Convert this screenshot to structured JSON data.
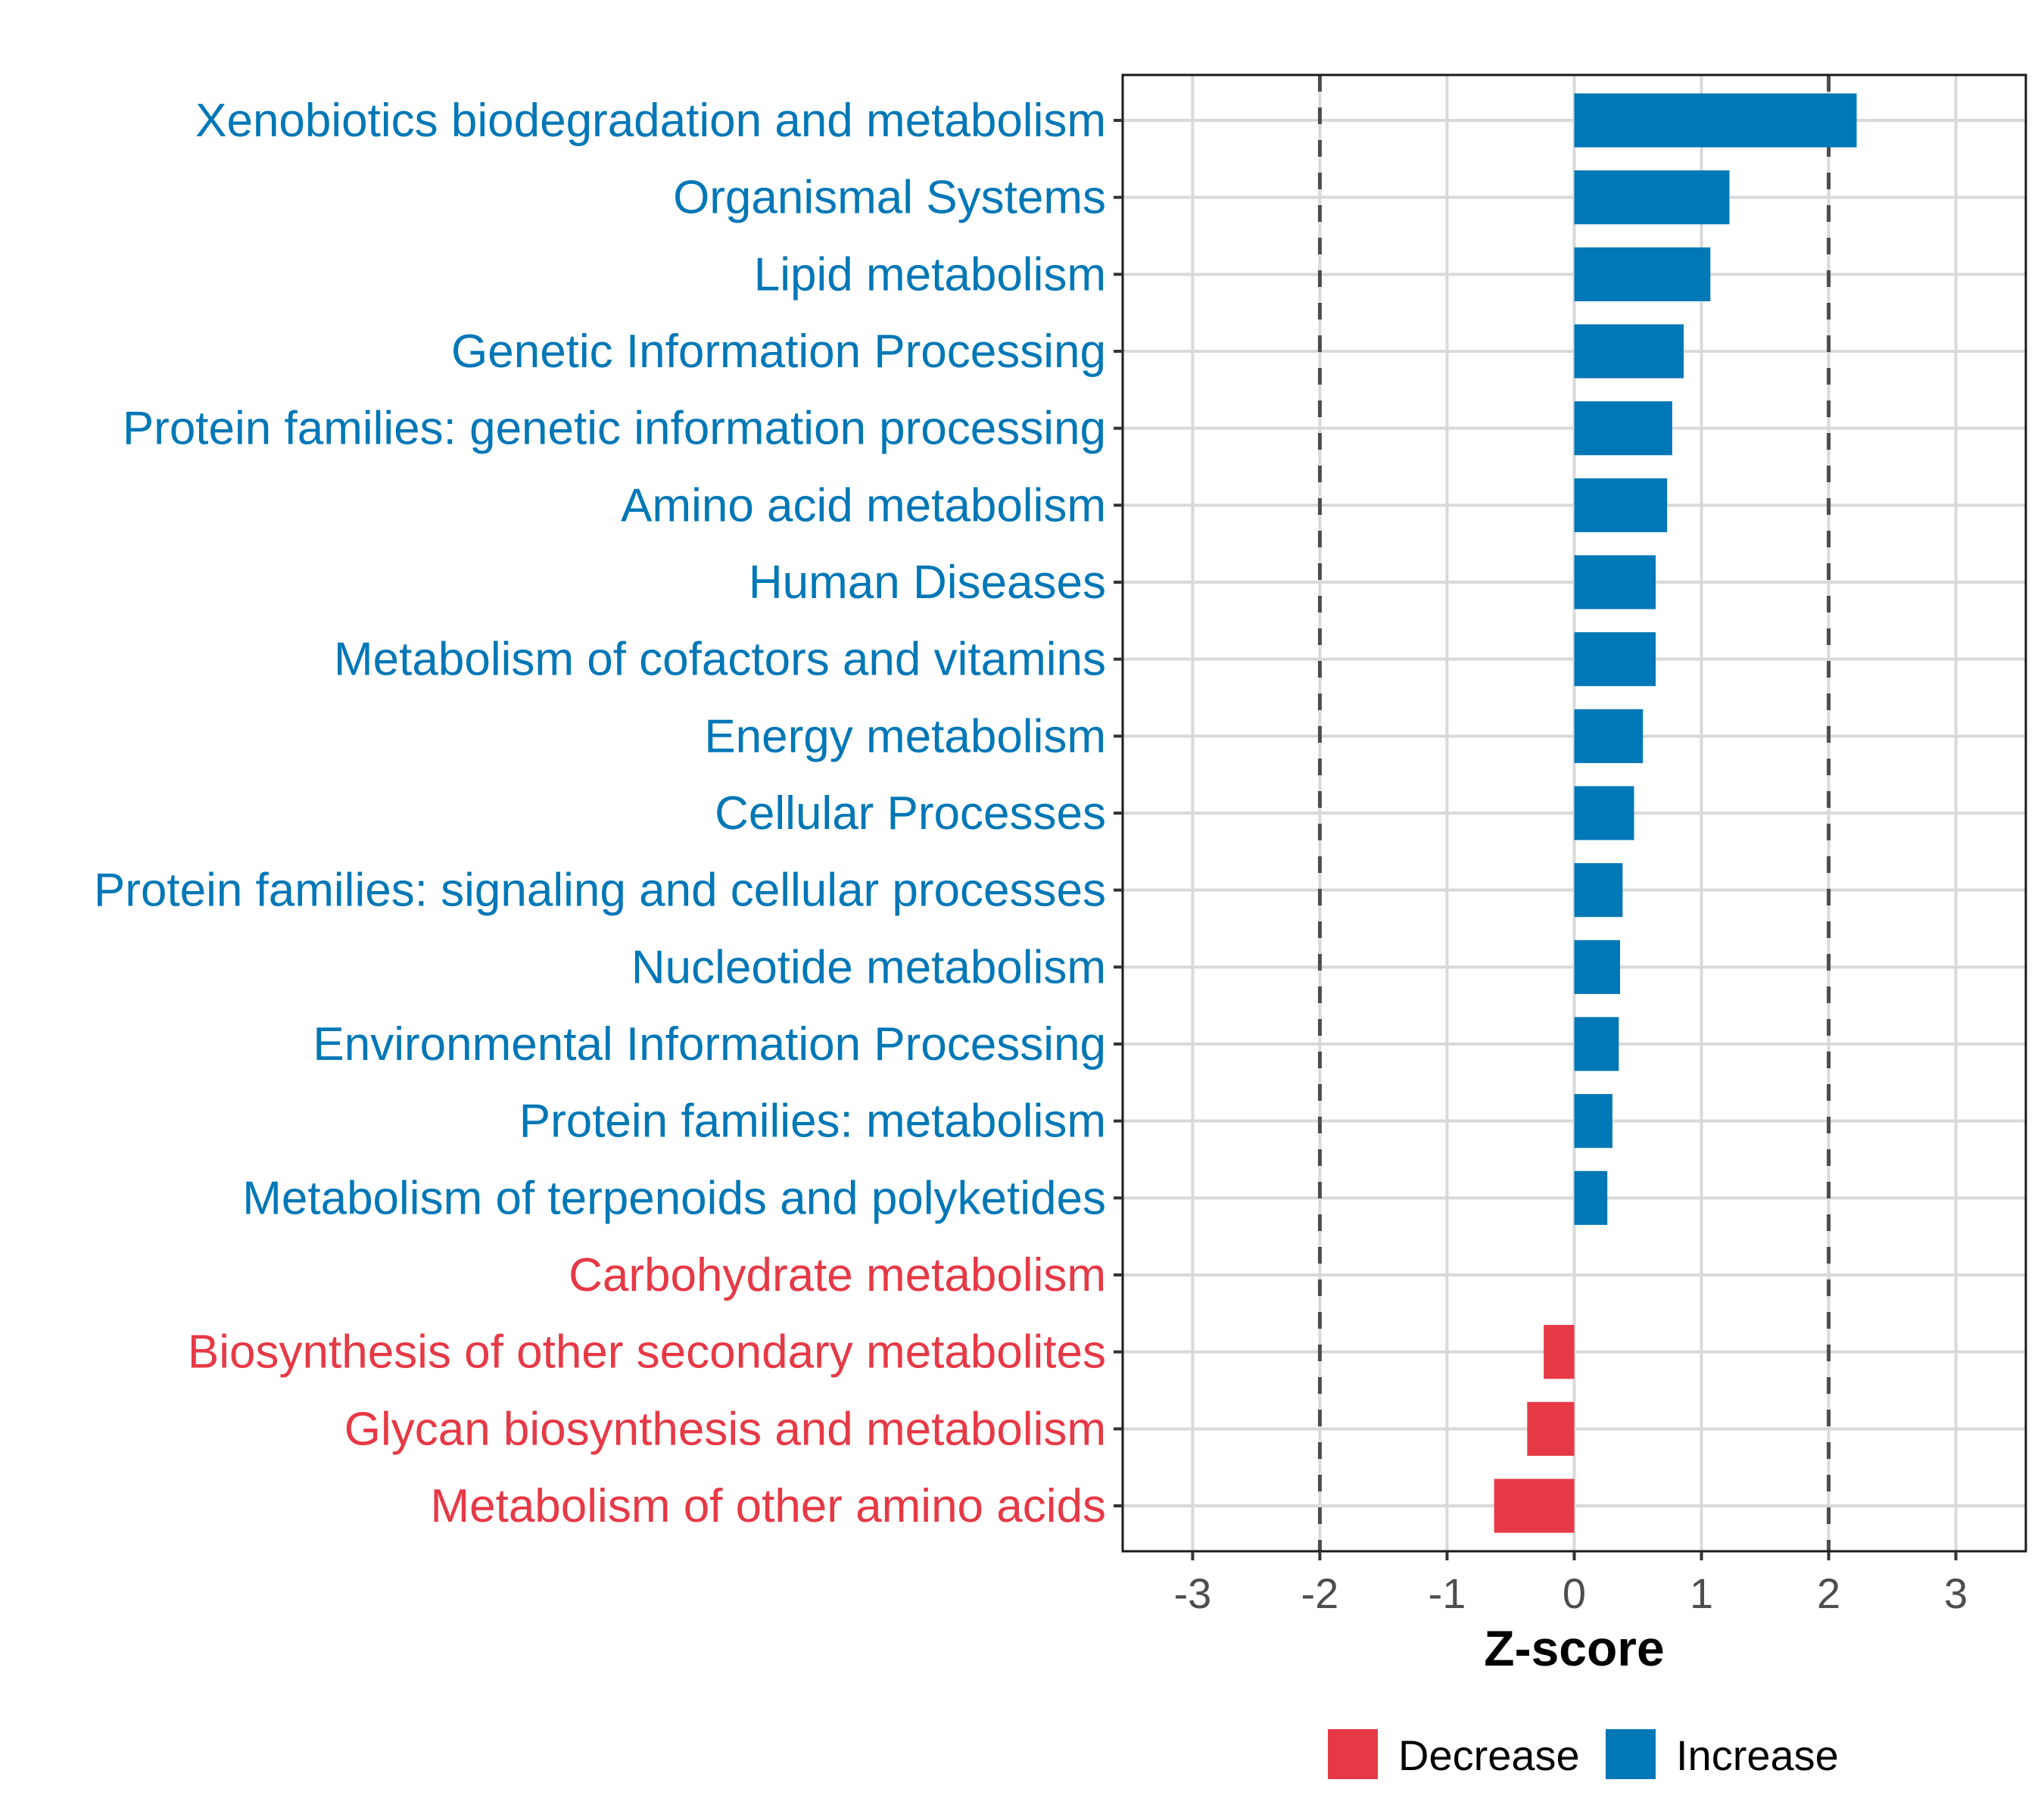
{
  "chart_data": {
    "type": "bar",
    "orientation": "horizontal",
    "title": "",
    "xlabel": "Z-score",
    "ylabel": "",
    "xlim": [
      -3.55,
      3.55
    ],
    "xticks": [
      -3,
      -2,
      -1,
      0,
      1,
      2,
      3
    ],
    "xtick_labels": [
      "-3",
      "-2",
      "-1",
      "0",
      "1",
      "2",
      "3"
    ],
    "reference_lines": [
      -2,
      2
    ],
    "grid": true,
    "legend_position": "bottom",
    "colors": {
      "Decrease": "#E63946",
      "Increase": "#0077B6"
    },
    "legend": [
      {
        "name": "Decrease",
        "color": "#E63946"
      },
      {
        "name": "Increase",
        "color": "#0077B6"
      }
    ],
    "categories": [
      "Xenobiotics biodegradation and metabolism",
      "Organismal Systems",
      "Lipid metabolism",
      "Genetic Information Processing",
      "Protein families: genetic information processing",
      "Amino acid metabolism",
      "Human Diseases",
      "Metabolism of cofactors and vitamins",
      "Energy metabolism",
      "Cellular Processes",
      "Protein families: signaling and cellular processes",
      "Nucleotide metabolism",
      "Environmental Information Processing",
      "Protein families: metabolism",
      "Metabolism of terpenoids and polyketides",
      "Carbohydrate metabolism",
      "Biosynthesis of other secondary metabolites",
      "Glycan biosynthesis and metabolism",
      "Metabolism of other amino acids"
    ],
    "values": [
      2.22,
      1.22,
      1.07,
      0.86,
      0.77,
      0.73,
      0.64,
      0.64,
      0.54,
      0.47,
      0.38,
      0.36,
      0.35,
      0.3,
      0.26,
      0.0,
      -0.24,
      -0.37,
      -0.63
    ],
    "groups": [
      "Increase",
      "Increase",
      "Increase",
      "Increase",
      "Increase",
      "Increase",
      "Increase",
      "Increase",
      "Increase",
      "Increase",
      "Increase",
      "Increase",
      "Increase",
      "Increase",
      "Increase",
      "Decrease",
      "Decrease",
      "Decrease",
      "Decrease"
    ]
  }
}
